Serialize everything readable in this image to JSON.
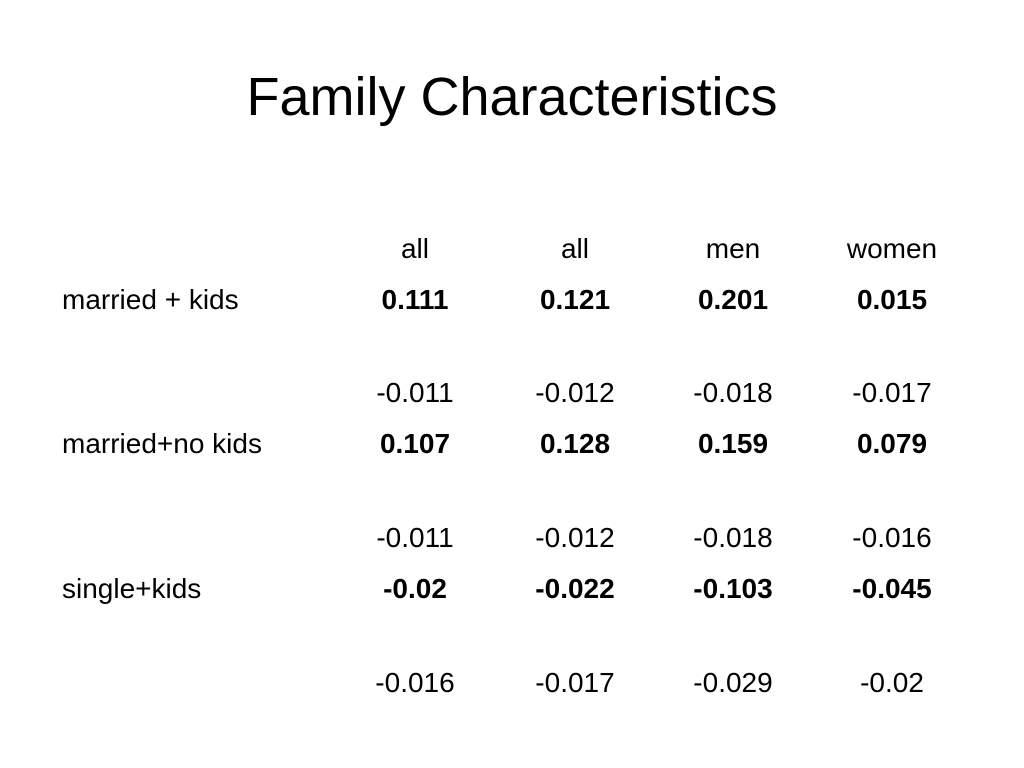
{
  "title": "Family Characteristics",
  "columns": [
    "all",
    "all",
    "men",
    "women"
  ],
  "rows": [
    {
      "label": "married + kids",
      "coef": [
        "0.111",
        "0.121",
        "0.201",
        "0.015"
      ],
      "se": [
        "-0.011",
        "-0.012",
        "-0.018",
        "-0.017"
      ]
    },
    {
      "label": "married+no kids",
      "coef": [
        "0.107",
        "0.128",
        "0.159",
        "0.079"
      ],
      "se": [
        "-0.011",
        "-0.012",
        "-0.018",
        "-0.016"
      ]
    },
    {
      "label": "single+kids",
      "coef": [
        "-0.02",
        "-0.022",
        "-0.103",
        "-0.045"
      ],
      "se": [
        "-0.016",
        "-0.017",
        "-0.029",
        "-0.02"
      ]
    }
  ]
}
